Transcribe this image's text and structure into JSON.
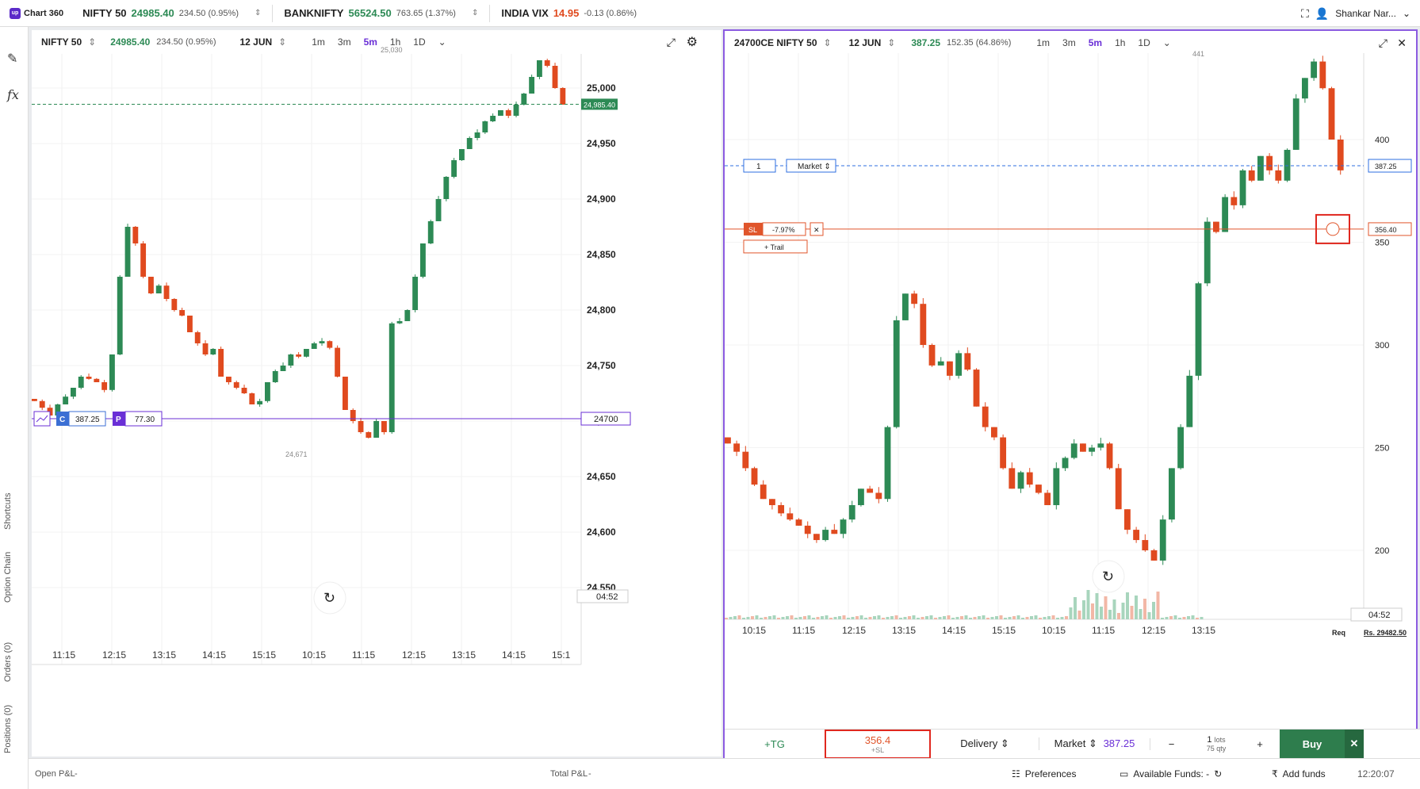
{
  "topbar": {
    "logo_text": "Chart 360",
    "logo_badge": "up",
    "tickers": [
      {
        "name": "NIFTY 50",
        "price": "24985.40",
        "change": "234.50 (0.95%)",
        "dir": "up"
      },
      {
        "name": "BANKNIFTY",
        "price": "56524.50",
        "change": "763.65 (1.37%)",
        "dir": "up"
      },
      {
        "name": "INDIA VIX",
        "price": "14.95",
        "change": "-0.13 (0.86%)",
        "dir": "down"
      }
    ],
    "user_name": "Shankar Nar..."
  },
  "rail": {
    "labels": [
      "Shortcuts",
      "Option Chain",
      "Orders (0)",
      "Positions (0)"
    ]
  },
  "left_panel": {
    "symbol": "NIFTY 50",
    "price": "24985.40",
    "change": "234.50 (0.95%)",
    "expiry": "12 JUN",
    "timeframes": [
      "1m",
      "3m",
      "5m",
      "1h",
      "1D"
    ],
    "active_tf": "5m",
    "y_ticks": [
      "25,000",
      "24,950",
      "24,900",
      "24,850",
      "24,800",
      "24,750",
      "24,700",
      "24,650",
      "24,600",
      "24,550"
    ],
    "x_ticks": [
      "11:15",
      "12:15",
      "13:15",
      "14:15",
      "15:15",
      "10:15",
      "11:15",
      "12:15",
      "13:15",
      "14:15",
      "15:1"
    ],
    "price_tag": "24,985.40",
    "strike_tag": "24700",
    "high_label": "25,030",
    "low_label": "24,671",
    "call_label": "C",
    "call_price": "387.25",
    "put_label": "P",
    "put_price": "77.30",
    "timer": "04:52"
  },
  "right_panel": {
    "symbol": "24700CE NIFTY 50",
    "expiry": "12 JUN",
    "price": "387.25",
    "change": "152.35 (64.86%)",
    "timeframes": [
      "1m",
      "3m",
      "5m",
      "1h",
      "1D"
    ],
    "active_tf": "5m",
    "y_ticks": [
      "400",
      "350",
      "300",
      "250",
      "200"
    ],
    "x_ticks": [
      "10:15",
      "11:15",
      "12:15",
      "13:15",
      "14:15",
      "15:15",
      "10:15",
      "11:15",
      "12:15",
      "13:15"
    ],
    "high_label": "441",
    "price_tag": "387.25",
    "sl_tag": "356.40",
    "order_qty": "1",
    "order_type": "Market",
    "sl_label": "SL",
    "sl_pct": "-7.97%",
    "trail_label": "+ Trail",
    "timer": "04:52",
    "req_label": "Req",
    "req_value": "Rs. 29482.50"
  },
  "order_bar": {
    "tg": "+TG",
    "sl_value": "356.4",
    "sl_sub": "+SL",
    "product": "Delivery",
    "order_type": "Market",
    "order_price": "387.25",
    "minus": "−",
    "lots_value": "1",
    "lots_label": "lots",
    "qty_value": "75",
    "qty_label": "qty",
    "plus": "+",
    "buy": "Buy"
  },
  "footer": {
    "open_pnl": "Open P&L",
    "open_pnl_val": "-",
    "total_pnl": "Total P&L",
    "total_pnl_val": "-",
    "preferences": "Preferences",
    "funds": "Available Funds: -",
    "add_funds": "Add funds",
    "time": "12:20:07"
  },
  "colors": {
    "up": "#2d8a55",
    "down": "#e04a1f",
    "accent": "#6a2fd6",
    "sl": "#e0552b",
    "order_line": "#2f6fe0"
  }
}
